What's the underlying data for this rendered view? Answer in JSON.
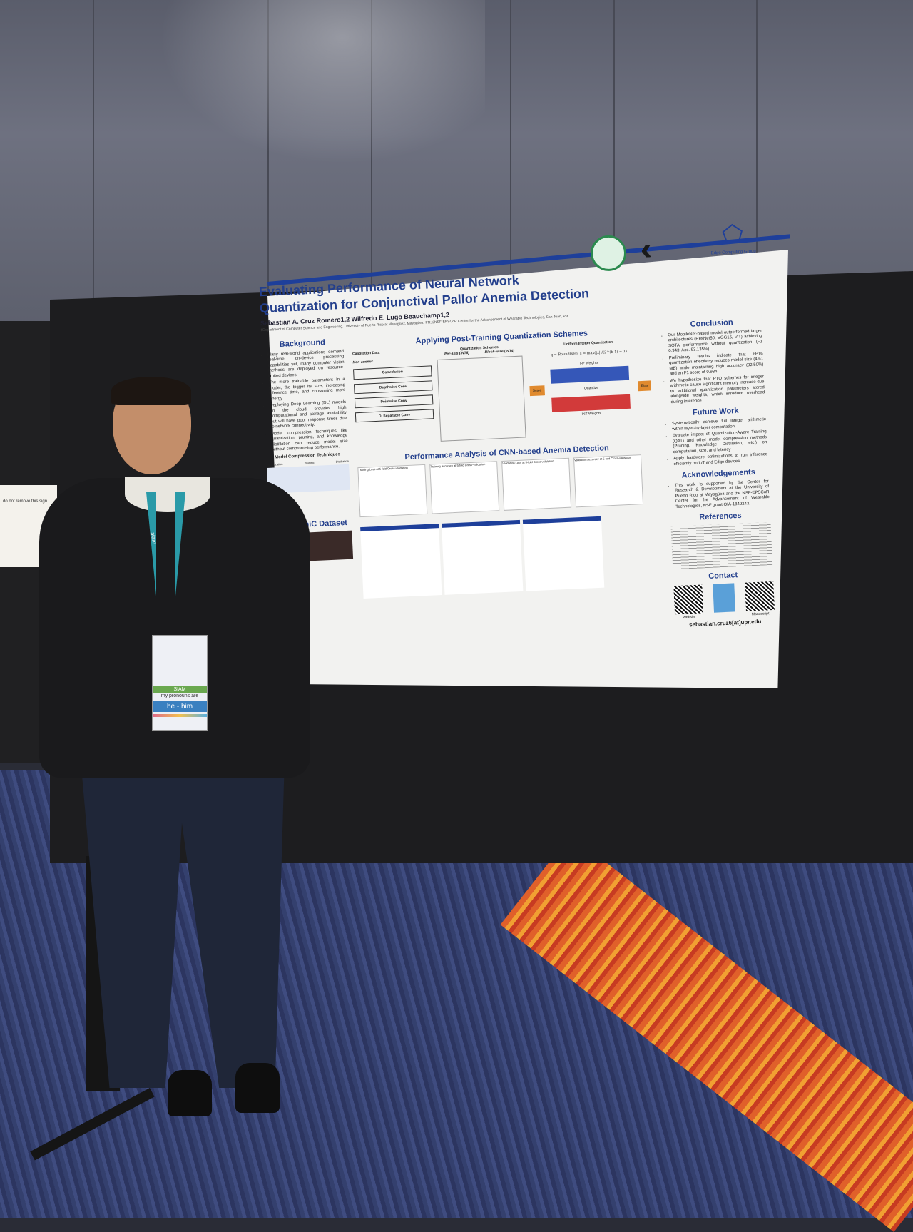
{
  "sign": {
    "text": "do not remove this sign."
  },
  "poster": {
    "title": "Evaluating Performance of Neural Network Quantization for Conjunctival Pallor Anemia Detection",
    "authors": "Sebastián A. Cruz Romero1,2  Wilfredo E. Lugo Beauchamp1,2",
    "affiliation": "1Department of Computer Science and Engineering, University of Puerto Rico at Mayagüez, Mayagüez, PR; 2NSF-EPSCoR Center for the Advancement of Wearable Technologies, San Juan, PR",
    "logo_group": "Edge Computing Group",
    "sections": {
      "background": {
        "heading": "Background",
        "items": [
          "Many real-world applications demand real-time, on-device processing capabilities yet, many computer vision methods are deployed on resource-limited devices.",
          "The more trainable parameters in a model, the bigger its size, increasing inference time, and consuming more energy.",
          "Deploying Deep Learning (DL) models on the cloud provides high computational and storage availability but will have poor response times due to network connectivity.",
          "Model compression techniques like quantization, pruning, and knowledge distillation can reduce model size without compromising performance."
        ],
        "sub": "Model Compression Techniques",
        "techniques": [
          "Quantization",
          "Pruning",
          "Distillation"
        ]
      },
      "dataset": {
        "heading": "CP-AnemiC Dataset"
      },
      "ptq": {
        "heading": "Applying Post-Training Quantization Schemes",
        "calibration": "Calibration Data",
        "non_anemic": "Non-anemic",
        "schemes": "Quantization Schemes",
        "per_axis": "Per-axis (INT8)",
        "block_wise": "Block-wise (INT4)",
        "layers": [
          "Convolution",
          "Depthwise Conv",
          "Pointwise Conv",
          "D. Separable Conv"
        ],
        "uniform": "Uniform Integer Quantization",
        "fp_weights": "FP Weights",
        "int_weights": "INT Weights",
        "scale": "Scale",
        "bias": "Bias",
        "quantize": "Quantize"
      },
      "performance": {
        "heading": "Performance Analysis of CNN-based Anemia Detection",
        "charts": [
          "Training Loss at 5-fold Cross-validation",
          "Training Accuracy at 5-fold Cross-validation",
          "Validation Loss at 5-fold Cross-validation",
          "Validation Accuracy at 5-fold Cross-validation"
        ]
      },
      "conclusion": {
        "heading": "Conclusion",
        "items": [
          "Our MobileNet-based model outperformed larger architectures (ResNet50, VGG16, ViT) achieving SOTA performance without quantization (F1 0.943; Acc. 93.135%)",
          "Preliminary results indicate that FP16 quantization effectively reduces model size (4.61 MB) while maintaining high accuracy (92.50%) and an F1 score of 0.934.",
          "We hypothesize that PTQ schemes for integer arithmetic cause significant memory increase due to additional quantization parameters stored alongside weights, which introduce overhead during inference"
        ]
      },
      "future": {
        "heading": "Future Work",
        "items": [
          "Systematically achieve full integer arithmetic within layer-by-layer computation.",
          "Evaluate impact of Quantization-Aware Training (QAT) and other model compression methods (Pruning, Knowledge Distillation, etc.) on computation, size, and latency",
          "Apply hardware optimizations to run inference efficiently on IoT and Edge devices."
        ]
      },
      "ack": {
        "heading": "Acknowledgements",
        "items": [
          "This work is supported by the Center for Research & Development at the University of Puerto Rico at Mayagüez and the NSF-EPSCoR Center for the Advancement of Wearable Technologies, NSF grant OIA-1849243."
        ]
      },
      "references": {
        "heading": "References"
      },
      "contact": {
        "heading": "Contact",
        "website": "Website",
        "manuscript": "Manuscript",
        "email": "sebastian.cruz6[at]upr.edu"
      }
    }
  },
  "badge": {
    "pronoun_label": "my pronouns are",
    "pronouns": "he - him",
    "lanyard": "siam"
  }
}
